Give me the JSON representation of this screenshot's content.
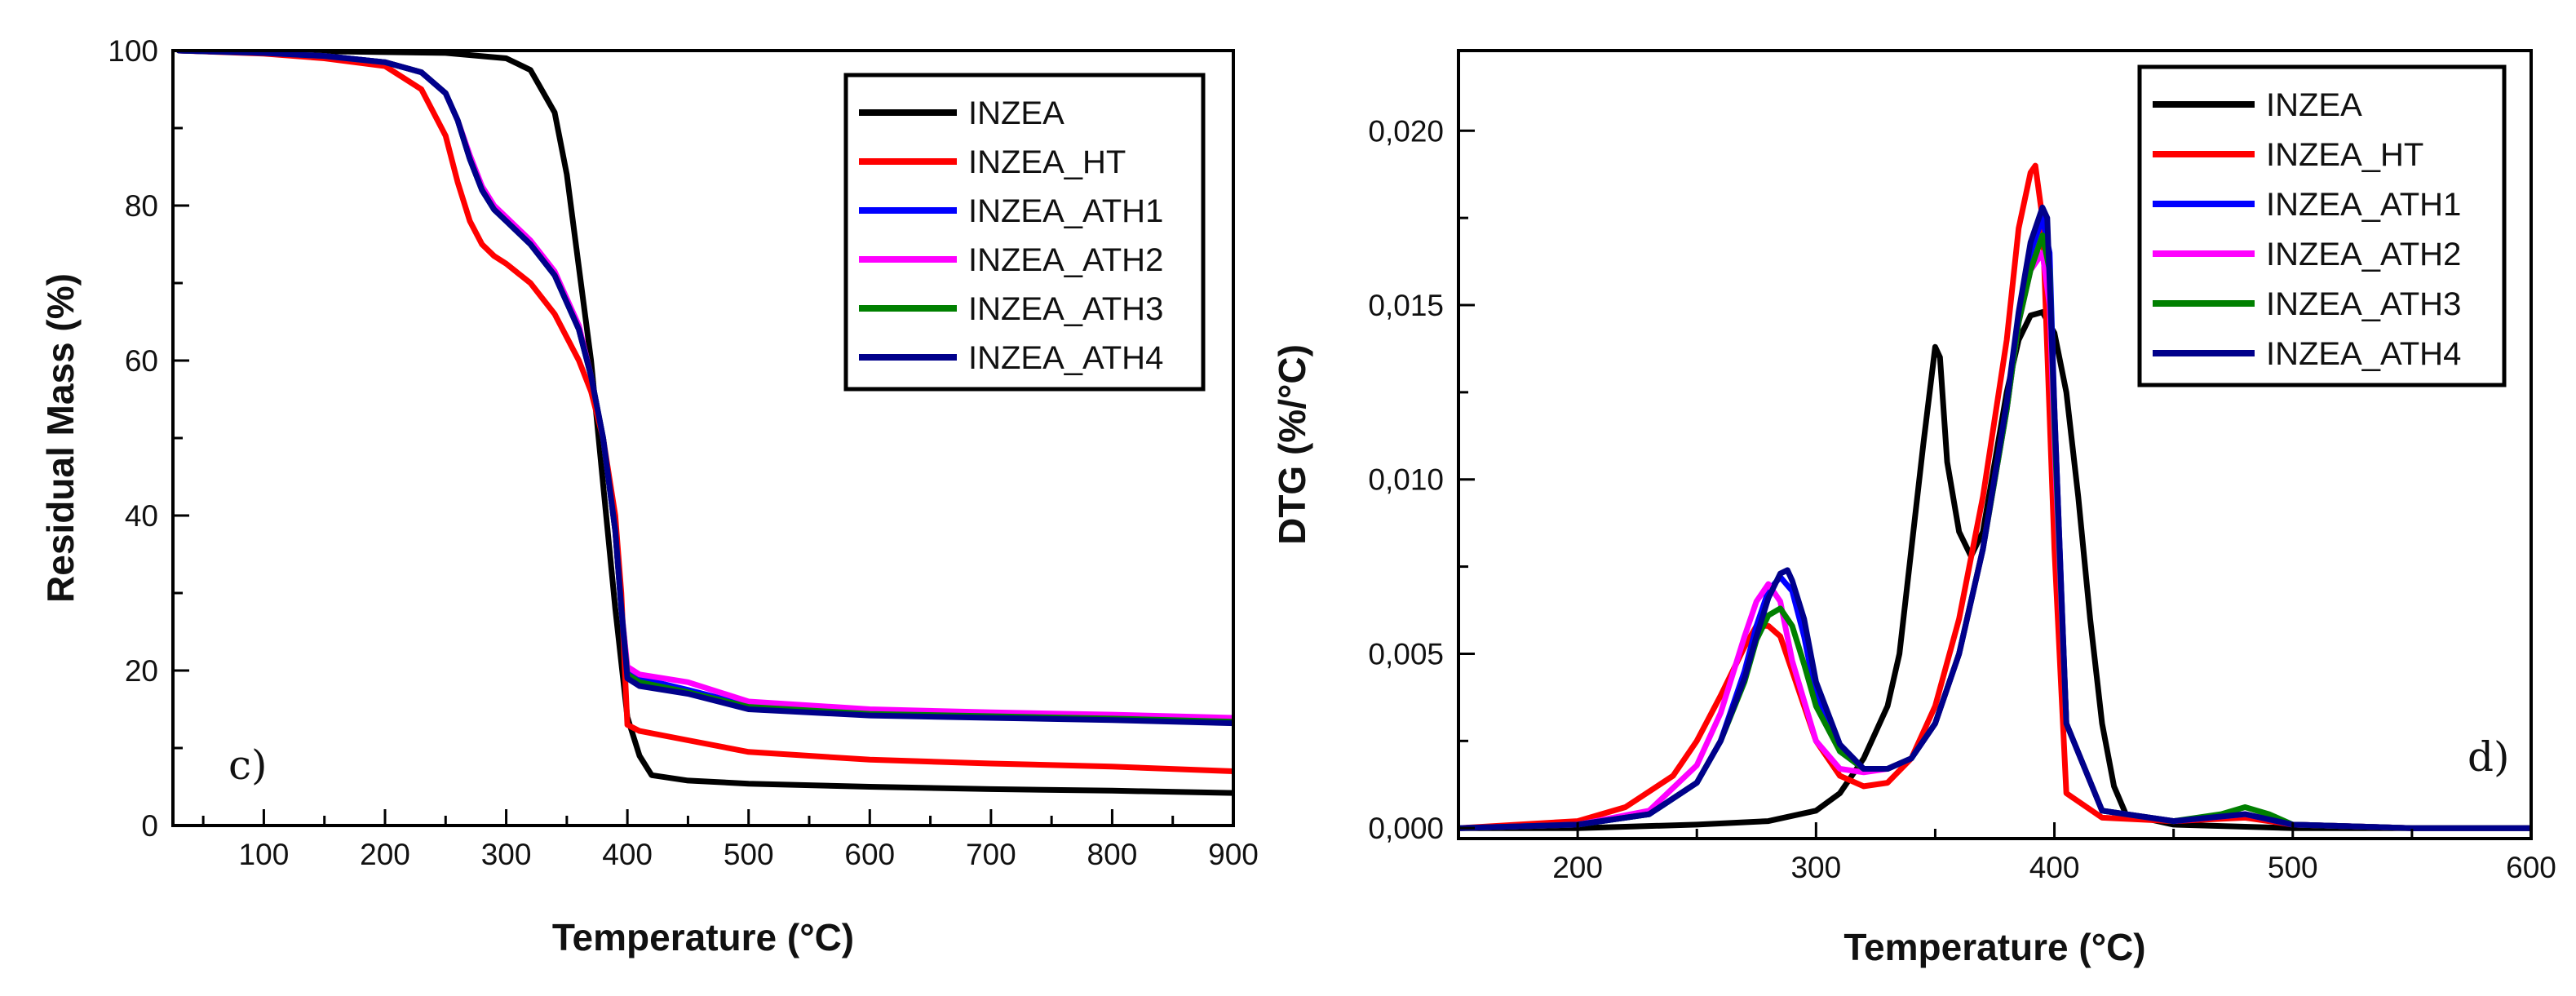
{
  "chart_data": [
    {
      "type": "line",
      "panel_label": "c)",
      "xlabel": "Temperature (°C)",
      "ylabel": "Residual Mass (%)",
      "xlim": [
        25,
        900
      ],
      "ylim": [
        0,
        100
      ],
      "x_ticks": [
        100,
        200,
        300,
        400,
        500,
        600,
        700,
        800,
        900
      ],
      "y_ticks": [
        0,
        20,
        40,
        60,
        80,
        100
      ],
      "legend_position": "top-right",
      "series": [
        {
          "name": "INZEA",
          "color": "#000000",
          "x": [
            30,
            150,
            250,
            300,
            320,
            340,
            350,
            360,
            370,
            380,
            390,
            400,
            410,
            420,
            450,
            500,
            600,
            700,
            800,
            900
          ],
          "y": [
            100,
            99.9,
            99.7,
            99,
            97.5,
            92,
            84,
            72,
            60,
            44,
            28,
            14,
            9,
            6.5,
            5.8,
            5.4,
            5,
            4.7,
            4.5,
            4.2
          ]
        },
        {
          "name": "INZEA_HT",
          "color": "#ff0000",
          "x": [
            30,
            100,
            150,
            200,
            230,
            250,
            260,
            270,
            280,
            290,
            300,
            320,
            340,
            360,
            370,
            380,
            390,
            395,
            400,
            410,
            450,
            500,
            600,
            700,
            800,
            900
          ],
          "y": [
            100,
            99.6,
            99,
            98,
            95,
            89,
            83,
            78,
            75,
            73.5,
            72.5,
            70,
            66,
            60,
            56,
            50,
            40,
            30,
            13,
            12.2,
            11,
            9.5,
            8.5,
            8,
            7.6,
            7
          ]
        },
        {
          "name": "INZEA_ATH1",
          "color": "#0000ff",
          "x": [
            30,
            100,
            150,
            200,
            230,
            250,
            260,
            270,
            280,
            290,
            300,
            320,
            340,
            360,
            370,
            380,
            390,
            395,
            400,
            410,
            450,
            500,
            600,
            700,
            800,
            900
          ],
          "y": [
            100,
            99.7,
            99.3,
            98.5,
            97.2,
            94.5,
            91,
            86,
            82,
            79.5,
            78,
            75,
            71,
            64,
            58,
            50,
            38,
            28,
            20,
            19,
            17.5,
            15.5,
            14.5,
            14.2,
            14,
            13.5
          ]
        },
        {
          "name": "INZEA_ATH2",
          "color": "#ff00ff",
          "x": [
            30,
            100,
            150,
            200,
            230,
            250,
            260,
            270,
            280,
            290,
            300,
            320,
            340,
            360,
            370,
            380,
            390,
            395,
            400,
            410,
            450,
            500,
            600,
            700,
            800,
            900
          ],
          "y": [
            100,
            99.7,
            99.3,
            98.5,
            97.2,
            94.5,
            91,
            86.5,
            82.5,
            80,
            78.5,
            75.5,
            71.5,
            64.5,
            58,
            50,
            38,
            28,
            20.5,
            19.5,
            18.5,
            16,
            15,
            14.6,
            14.3,
            13.9
          ]
        },
        {
          "name": "INZEA_ATH3",
          "color": "#008000",
          "x": [
            30,
            100,
            150,
            200,
            230,
            250,
            260,
            270,
            280,
            290,
            300,
            320,
            340,
            360,
            370,
            380,
            390,
            395,
            400,
            410,
            450,
            500,
            600,
            700,
            800,
            900
          ],
          "y": [
            100,
            99.7,
            99.3,
            98.5,
            97.2,
            94.5,
            91,
            86,
            82,
            79.5,
            78,
            75,
            71,
            64,
            58,
            50,
            38,
            28,
            19.5,
            18.5,
            17.2,
            15.3,
            14.4,
            14.1,
            13.8,
            13.4
          ]
        },
        {
          "name": "INZEA_ATH4",
          "color": "#00008b",
          "x": [
            30,
            100,
            150,
            200,
            230,
            250,
            260,
            270,
            280,
            290,
            300,
            320,
            340,
            360,
            370,
            380,
            390,
            395,
            400,
            410,
            450,
            500,
            600,
            700,
            800,
            900
          ],
          "y": [
            100,
            99.7,
            99.3,
            98.5,
            97.2,
            94.5,
            91,
            86,
            82,
            79.5,
            78,
            75,
            71,
            64,
            58,
            50,
            38,
            28,
            19,
            18,
            17,
            15,
            14.2,
            13.9,
            13.6,
            13.2
          ]
        }
      ]
    },
    {
      "type": "line",
      "panel_label": "d)",
      "xlabel": "Temperature (°C)",
      "ylabel": "DTG (%/°C)",
      "xlim": [
        150,
        600
      ],
      "ylim": [
        -0.0003,
        0.0223
      ],
      "x_ticks": [
        200,
        300,
        400,
        500,
        600
      ],
      "y_ticks": [
        0.0,
        0.005,
        0.01,
        0.015,
        0.02
      ],
      "y_tick_labels": [
        "0,000",
        "0,005",
        "0,010",
        "0,015",
        "0,020"
      ],
      "legend_position": "top-right",
      "series": [
        {
          "name": "INZEA",
          "color": "#000000",
          "x": [
            150,
            200,
            250,
            280,
            300,
            310,
            320,
            330,
            335,
            340,
            345,
            350,
            352,
            355,
            360,
            365,
            370,
            375,
            380,
            385,
            390,
            395,
            400,
            405,
            410,
            415,
            420,
            425,
            430,
            450,
            500,
            550,
            600
          ],
          "y": [
            0,
            0,
            0.0001,
            0.0002,
            0.0005,
            0.001,
            0.002,
            0.0035,
            0.005,
            0.008,
            0.011,
            0.0138,
            0.0135,
            0.0105,
            0.0085,
            0.0078,
            0.0085,
            0.0105,
            0.0125,
            0.014,
            0.0147,
            0.0148,
            0.0142,
            0.0125,
            0.0095,
            0.006,
            0.003,
            0.0012,
            0.0004,
            0.0001,
            0,
            0,
            0
          ]
        },
        {
          "name": "INZEA_HT",
          "color": "#ff0000",
          "x": [
            150,
            200,
            220,
            240,
            250,
            260,
            270,
            275,
            280,
            285,
            290,
            300,
            310,
            320,
            330,
            340,
            350,
            360,
            370,
            380,
            385,
            390,
            392,
            395,
            400,
            405,
            420,
            450,
            480,
            500,
            550,
            600
          ],
          "y": [
            0,
            0.0002,
            0.0006,
            0.0015,
            0.0025,
            0.0038,
            0.0052,
            0.0058,
            0.0058,
            0.0055,
            0.0045,
            0.0025,
            0.0015,
            0.0012,
            0.0013,
            0.002,
            0.0035,
            0.006,
            0.0095,
            0.014,
            0.0172,
            0.0188,
            0.019,
            0.0175,
            0.008,
            0.001,
            0.0003,
            0.0002,
            0.0003,
            0.0001,
            0,
            0
          ]
        },
        {
          "name": "INZEA_ATH1",
          "color": "#0000ff",
          "x": [
            150,
            200,
            230,
            250,
            260,
            270,
            275,
            280,
            285,
            290,
            295,
            300,
            310,
            320,
            330,
            340,
            350,
            360,
            370,
            380,
            385,
            390,
            395,
            398,
            400,
            405,
            420,
            450,
            480,
            500,
            550,
            600
          ],
          "y": [
            0,
            0.0001,
            0.0004,
            0.0013,
            0.0025,
            0.0045,
            0.0058,
            0.0068,
            0.0072,
            0.0068,
            0.0055,
            0.0038,
            0.0022,
            0.0017,
            0.0017,
            0.002,
            0.003,
            0.005,
            0.008,
            0.012,
            0.0145,
            0.0165,
            0.0175,
            0.0165,
            0.012,
            0.003,
            0.0005,
            0.0002,
            0.0004,
            0.0001,
            0,
            0
          ]
        },
        {
          "name": "INZEA_ATH2",
          "color": "#ff00ff",
          "x": [
            150,
            200,
            230,
            250,
            260,
            270,
            275,
            280,
            285,
            290,
            300,
            310,
            320,
            330,
            340,
            350,
            360,
            370,
            380,
            385,
            390,
            395,
            398,
            400,
            405,
            420,
            450,
            480,
            500,
            550,
            600
          ],
          "y": [
            0,
            0.0001,
            0.0005,
            0.0018,
            0.0033,
            0.0055,
            0.0065,
            0.007,
            0.0065,
            0.0048,
            0.0025,
            0.0017,
            0.0016,
            0.0017,
            0.002,
            0.003,
            0.005,
            0.008,
            0.012,
            0.0145,
            0.016,
            0.0165,
            0.015,
            0.011,
            0.003,
            0.0005,
            0.0002,
            0.0004,
            0.0001,
            0,
            0
          ]
        },
        {
          "name": "INZEA_ATH3",
          "color": "#008000",
          "x": [
            150,
            200,
            230,
            250,
            260,
            270,
            275,
            280,
            285,
            290,
            295,
            300,
            310,
            320,
            330,
            340,
            350,
            360,
            370,
            380,
            385,
            390,
            395,
            398,
            400,
            405,
            420,
            450,
            470,
            480,
            490,
            500,
            550,
            600
          ],
          "y": [
            0,
            0.0001,
            0.0004,
            0.0013,
            0.0025,
            0.0042,
            0.0054,
            0.0061,
            0.0063,
            0.0058,
            0.0047,
            0.0035,
            0.0022,
            0.0017,
            0.0017,
            0.002,
            0.003,
            0.005,
            0.008,
            0.012,
            0.0145,
            0.016,
            0.017,
            0.016,
            0.0115,
            0.003,
            0.0005,
            0.0002,
            0.0004,
            0.0006,
            0.0004,
            0.0001,
            0,
            0
          ]
        },
        {
          "name": "INZEA_ATH4",
          "color": "#00008b",
          "x": [
            150,
            200,
            230,
            250,
            260,
            270,
            275,
            280,
            285,
            288,
            290,
            295,
            300,
            310,
            320,
            330,
            340,
            350,
            360,
            370,
            380,
            385,
            390,
            395,
            397,
            400,
            405,
            420,
            450,
            480,
            500,
            550,
            600
          ],
          "y": [
            0,
            0.0001,
            0.0004,
            0.0013,
            0.0025,
            0.0043,
            0.0055,
            0.0066,
            0.0073,
            0.0074,
            0.0071,
            0.006,
            0.0042,
            0.0024,
            0.0017,
            0.0017,
            0.002,
            0.003,
            0.005,
            0.008,
            0.0122,
            0.0148,
            0.0168,
            0.0178,
            0.0175,
            0.012,
            0.003,
            0.0005,
            0.0002,
            0.0004,
            0.0001,
            0,
            0
          ]
        }
      ]
    }
  ]
}
